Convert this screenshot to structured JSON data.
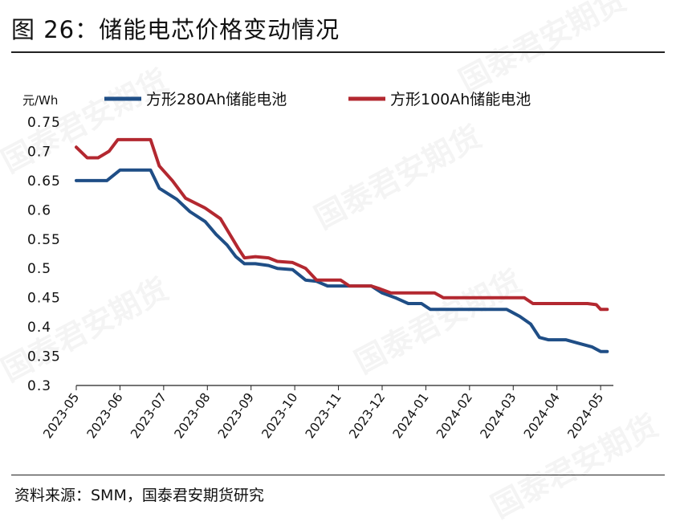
{
  "title": "图 26：储能电芯价格变动情况",
  "source": "资料来源：SMM，国泰君安期货研究",
  "watermark": "国泰君安期货",
  "chart_data": {
    "type": "line",
    "ylabel": "元/Wh",
    "ylim": [
      0.3,
      0.75
    ],
    "yticks": [
      0.3,
      0.35,
      0.4,
      0.45,
      0.5,
      0.55,
      0.6,
      0.65,
      0.7,
      0.75
    ],
    "ytick_labels": [
      "0.3",
      "0.35",
      "0.4",
      "0.45",
      "0.5",
      "0.55",
      "0.6",
      "0.65",
      "0.7",
      "0.75"
    ],
    "xlim": [
      0,
      12.2
    ],
    "xtick_labels": [
      "2023-05",
      "2023-06",
      "2023-07",
      "2023-08",
      "2023-09",
      "2023-10",
      "2023-11",
      "2023-12",
      "2024-01",
      "2024-02",
      "2024-03",
      "2024-04",
      "2024-05"
    ],
    "legend_position": "top",
    "series": [
      {
        "name": "方形280Ah储能电池",
        "color": "#1f4e86",
        "points": [
          [
            0,
            0.65
          ],
          [
            0.5,
            0.65
          ],
          [
            0.7,
            0.65
          ],
          [
            1.0,
            0.668
          ],
          [
            1.3,
            0.668
          ],
          [
            1.6,
            0.668
          ],
          [
            1.7,
            0.668
          ],
          [
            1.9,
            0.637
          ],
          [
            2.3,
            0.618
          ],
          [
            2.6,
            0.597
          ],
          [
            2.95,
            0.58
          ],
          [
            3.2,
            0.558
          ],
          [
            3.45,
            0.54
          ],
          [
            3.65,
            0.52
          ],
          [
            3.85,
            0.508
          ],
          [
            4.1,
            0.508
          ],
          [
            4.4,
            0.505
          ],
          [
            4.6,
            0.5
          ],
          [
            4.95,
            0.498
          ],
          [
            5.25,
            0.48
          ],
          [
            5.5,
            0.478
          ],
          [
            5.75,
            0.47
          ],
          [
            6.2,
            0.47
          ],
          [
            6.45,
            0.47
          ],
          [
            6.75,
            0.47
          ],
          [
            7.0,
            0.458
          ],
          [
            7.3,
            0.45
          ],
          [
            7.6,
            0.44
          ],
          [
            7.9,
            0.44
          ],
          [
            8.1,
            0.43
          ],
          [
            8.5,
            0.43
          ],
          [
            9.0,
            0.43
          ],
          [
            9.5,
            0.43
          ],
          [
            9.85,
            0.43
          ],
          [
            10.15,
            0.418
          ],
          [
            10.4,
            0.405
          ],
          [
            10.6,
            0.382
          ],
          [
            10.8,
            0.378
          ],
          [
            11.2,
            0.378
          ],
          [
            11.45,
            0.373
          ],
          [
            11.8,
            0.366
          ],
          [
            12.0,
            0.358
          ],
          [
            12.15,
            0.358
          ]
        ]
      },
      {
        "name": "方形100Ah储能电池",
        "color": "#b32830",
        "points": [
          [
            0,
            0.707
          ],
          [
            0.25,
            0.689
          ],
          [
            0.5,
            0.689
          ],
          [
            0.75,
            0.7
          ],
          [
            0.95,
            0.72
          ],
          [
            1.2,
            0.72
          ],
          [
            1.5,
            0.72
          ],
          [
            1.7,
            0.72
          ],
          [
            1.9,
            0.675
          ],
          [
            2.2,
            0.65
          ],
          [
            2.5,
            0.62
          ],
          [
            2.95,
            0.603
          ],
          [
            3.3,
            0.585
          ],
          [
            3.5,
            0.56
          ],
          [
            3.7,
            0.535
          ],
          [
            3.85,
            0.518
          ],
          [
            4.1,
            0.52
          ],
          [
            4.4,
            0.518
          ],
          [
            4.6,
            0.512
          ],
          [
            4.95,
            0.51
          ],
          [
            5.25,
            0.5
          ],
          [
            5.5,
            0.48
          ],
          [
            5.8,
            0.48
          ],
          [
            6.05,
            0.48
          ],
          [
            6.25,
            0.47
          ],
          [
            6.75,
            0.47
          ],
          [
            6.95,
            0.465
          ],
          [
            7.2,
            0.458
          ],
          [
            7.6,
            0.458
          ],
          [
            8.0,
            0.458
          ],
          [
            8.2,
            0.458
          ],
          [
            8.4,
            0.45
          ],
          [
            8.7,
            0.45
          ],
          [
            9.0,
            0.45
          ],
          [
            9.5,
            0.45
          ],
          [
            9.95,
            0.45
          ],
          [
            10.25,
            0.45
          ],
          [
            10.45,
            0.44
          ],
          [
            10.8,
            0.44
          ],
          [
            11.2,
            0.44
          ],
          [
            11.7,
            0.44
          ],
          [
            11.9,
            0.438
          ],
          [
            12.0,
            0.43
          ],
          [
            12.15,
            0.43
          ]
        ]
      }
    ]
  }
}
